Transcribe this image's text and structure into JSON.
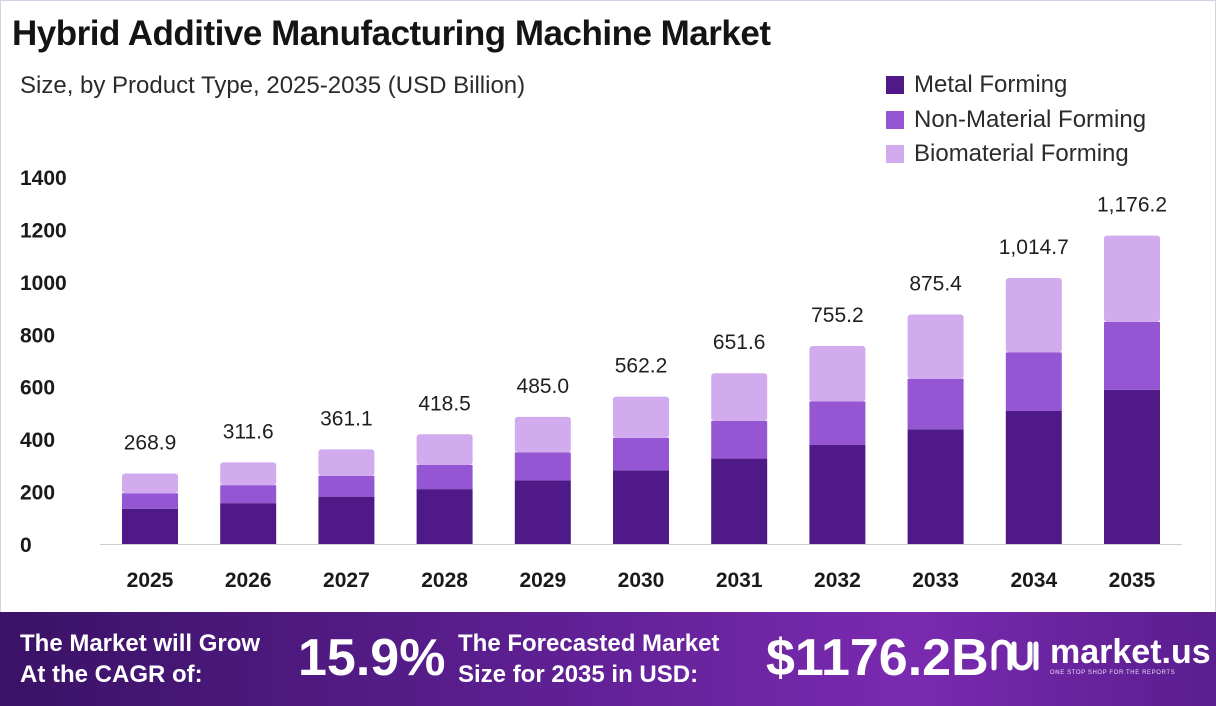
{
  "chart_data": {
    "type": "bar",
    "stacked": true,
    "title": "Hybrid Additive Manufacturing Machine Market",
    "subtitle": "Size, by Product Type, 2025-2035 (USD Billion)",
    "categories": [
      "2025",
      "2026",
      "2027",
      "2028",
      "2029",
      "2030",
      "2031",
      "2032",
      "2033",
      "2034",
      "2035"
    ],
    "series": [
      {
        "name": "Metal Forming",
        "color": "#4f1a87",
        "values": [
          134.5,
          155.8,
          180.6,
          209.3,
          242.5,
          281.1,
          325.8,
          377.6,
          437.7,
          507.4,
          588.1
        ]
      },
      {
        "name": "Non-Material Forming",
        "color": "#9556d3",
        "values": [
          59.2,
          68.6,
          79.4,
          92.1,
          106.7,
          123.7,
          143.4,
          166.1,
          192.6,
          223.2,
          258.8
        ]
      },
      {
        "name": "Biomaterial Forming",
        "color": "#d2aaee",
        "values": [
          75.2,
          87.2,
          101.1,
          117.1,
          135.8,
          157.4,
          182.4,
          211.5,
          245.1,
          284.1,
          329.3
        ]
      }
    ],
    "totals": [
      "268.9",
      "311.6",
      "361.1",
      "418.5",
      "485.0",
      "562.2",
      "651.6",
      "755.2",
      "875.4",
      "1,014.7",
      "1,176.2"
    ],
    "yticks": [
      0,
      200,
      400,
      600,
      800,
      1000,
      1200,
      1400
    ],
    "ylim": [
      0,
      1400
    ],
    "xlabel": "",
    "ylabel": "",
    "grid": false,
    "legend_position": "top-right"
  },
  "banner": {
    "cagr_label_line1": "The Market will Grow",
    "cagr_label_line2": "At the CAGR of:",
    "cagr_value": "15.9%",
    "forecast_label_line1": "The Forecasted Market",
    "forecast_label_line2": "Size for 2035 in USD:",
    "forecast_value": "$1176.2B"
  },
  "brand": {
    "name": "market.us",
    "tagline": "ONE STOP SHOP FOR THE REPORTS",
    "icon": "market-us-logo-icon"
  }
}
